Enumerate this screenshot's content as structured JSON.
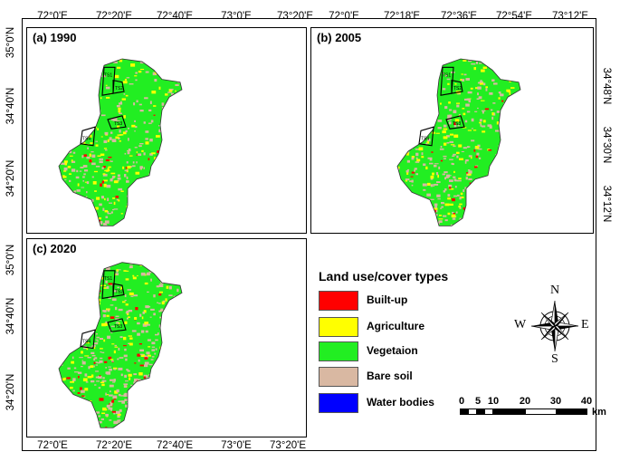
{
  "panels": [
    {
      "label": "(a) 1990",
      "top_ticks": [
        "72°0'E",
        "72°20'E",
        "72°40'E",
        "73°0'E",
        "73°20'E"
      ],
      "left_ticks": [
        "35°0'N",
        "34°40'N",
        "34°20'N"
      ]
    },
    {
      "label": "(b) 2005",
      "top_ticks": [
        "72°0'E",
        "72°18'E",
        "72°36'E",
        "72°54'E",
        "73°12'E"
      ],
      "right_ticks": [
        "34°48'N",
        "34°30'N",
        "34°12'N"
      ]
    },
    {
      "label": "(c) 2020",
      "bottom_ticks": [
        "72°0'E",
        "72°20'E",
        "72°40'E",
        "73°0'E",
        "73°20'E"
      ],
      "left_ticks": [
        "35°0'N",
        "34°40'N",
        "34°20'N"
      ]
    }
  ],
  "region_labels": [
    "TS1",
    "TS2",
    "TS3",
    "TS4"
  ],
  "legend": {
    "title": "Land use/cover types",
    "items": [
      {
        "label": "Built-up",
        "color": "#ff0000"
      },
      {
        "label": "Agriculture",
        "color": "#ffff00"
      },
      {
        "label": "Vegetaion",
        "color": "#22ee22"
      },
      {
        "label": "Bare soil",
        "color": "#d9b8a2"
      },
      {
        "label": "Water bodies",
        "color": "#0000ff"
      }
    ]
  },
  "compass": {
    "n": "N",
    "s": "S",
    "e": "E",
    "w": "W"
  },
  "scale_bar": {
    "ticks": [
      "0",
      "5",
      "10",
      "20",
      "30",
      "40"
    ],
    "unit": "km"
  }
}
